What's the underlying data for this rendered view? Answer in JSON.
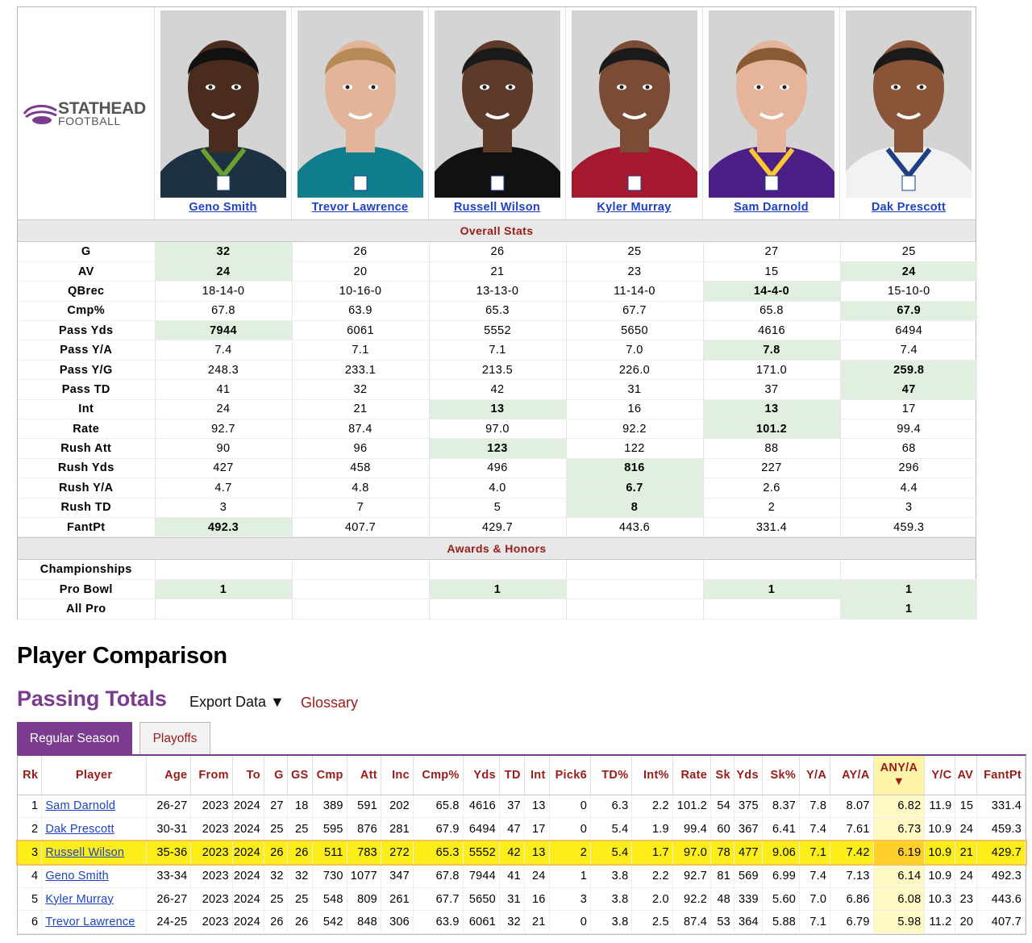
{
  "logo": {
    "line1": "STATHEAD",
    "line2": "FOOTBALL"
  },
  "players": [
    {
      "name": "Geno Smith",
      "skin": "#4a2c1f",
      "jersey": "#1e3142",
      "trim": "#6aa02e",
      "hair": "#111"
    },
    {
      "name": "Trevor Lawrence",
      "skin": "#e2b59a",
      "jersey": "#0f7d8c",
      "trim": "#0f7d8c",
      "hair": "#b78a55"
    },
    {
      "name": "Russell Wilson",
      "skin": "#5e3a28",
      "jersey": "#111111",
      "trim": "#111111",
      "hair": "#1a1a1a"
    },
    {
      "name": "Kyler Murray",
      "skin": "#7a4b35",
      "jersey": "#a5192f",
      "trim": "#a5192f",
      "hair": "#1a1a1a"
    },
    {
      "name": "Sam Darnold",
      "skin": "#e6b49a",
      "jersey": "#4b1f85",
      "trim": "#ffc62f",
      "hair": "#8a5a35"
    },
    {
      "name": "Dak Prescott",
      "skin": "#8a5438",
      "jersey": "#f2f2f2",
      "trim": "#1d3f84",
      "hair": "#1a1a1a"
    }
  ],
  "overall_title": "Overall Stats",
  "overall": [
    {
      "label": "G",
      "vals": [
        "32",
        "26",
        "26",
        "25",
        "27",
        "25"
      ],
      "hl": [
        0
      ]
    },
    {
      "label": "AV",
      "vals": [
        "24",
        "20",
        "21",
        "23",
        "15",
        "24"
      ],
      "hl": [
        0,
        5
      ]
    },
    {
      "label": "QBrec",
      "vals": [
        "18-14-0",
        "10-16-0",
        "13-13-0",
        "11-14-0",
        "14-4-0",
        "15-10-0"
      ],
      "hl": [
        4
      ]
    },
    {
      "label": "Cmp%",
      "vals": [
        "67.8",
        "63.9",
        "65.3",
        "67.7",
        "65.8",
        "67.9"
      ],
      "hl": [
        5
      ]
    },
    {
      "label": "Pass Yds",
      "vals": [
        "7944",
        "6061",
        "5552",
        "5650",
        "4616",
        "6494"
      ],
      "hl": [
        0
      ]
    },
    {
      "label": "Pass Y/A",
      "vals": [
        "7.4",
        "7.1",
        "7.1",
        "7.0",
        "7.8",
        "7.4"
      ],
      "hl": [
        4
      ]
    },
    {
      "label": "Pass Y/G",
      "vals": [
        "248.3",
        "233.1",
        "213.5",
        "226.0",
        "171.0",
        "259.8"
      ],
      "hl": [
        5
      ]
    },
    {
      "label": "Pass TD",
      "vals": [
        "41",
        "32",
        "42",
        "31",
        "37",
        "47"
      ],
      "hl": [
        5
      ]
    },
    {
      "label": "Int",
      "vals": [
        "24",
        "21",
        "13",
        "16",
        "13",
        "17"
      ],
      "hl": [
        2,
        4
      ]
    },
    {
      "label": "Rate",
      "vals": [
        "92.7",
        "87.4",
        "97.0",
        "92.2",
        "101.2",
        "99.4"
      ],
      "hl": [
        4
      ]
    },
    {
      "label": "Rush Att",
      "vals": [
        "90",
        "96",
        "123",
        "122",
        "88",
        "68"
      ],
      "hl": [
        2
      ]
    },
    {
      "label": "Rush Yds",
      "vals": [
        "427",
        "458",
        "496",
        "816",
        "227",
        "296"
      ],
      "hl": [
        3
      ]
    },
    {
      "label": "Rush Y/A",
      "vals": [
        "4.7",
        "4.8",
        "4.0",
        "6.7",
        "2.6",
        "4.4"
      ],
      "hl": [
        3
      ]
    },
    {
      "label": "Rush TD",
      "vals": [
        "3",
        "7",
        "5",
        "8",
        "2",
        "3"
      ],
      "hl": [
        3
      ]
    },
    {
      "label": "FantPt",
      "vals": [
        "492.3",
        "407.7",
        "429.7",
        "443.6",
        "331.4",
        "459.3"
      ],
      "hl": [
        0
      ]
    }
  ],
  "awards_title": "Awards & Honors",
  "awards": [
    {
      "label": "Championships",
      "vals": [
        "",
        "",
        "",
        "",
        "",
        ""
      ],
      "hl": []
    },
    {
      "label": "Pro Bowl",
      "vals": [
        "1",
        "",
        "1",
        "",
        "1",
        "1"
      ],
      "hl": [
        0,
        2,
        4,
        5
      ]
    },
    {
      "label": "All Pro",
      "vals": [
        "",
        "",
        "",
        "",
        "",
        "1"
      ],
      "hl": [
        5
      ]
    }
  ],
  "section_title": "Player Comparison",
  "table_title": "Passing Totals",
  "export_label": "Export Data ▼",
  "glossary_label": "Glossary",
  "tabs": {
    "regular": "Regular Season",
    "playoffs": "Playoffs"
  },
  "columns": [
    "Rk",
    "Player",
    "Age",
    "From",
    "To",
    "G",
    "GS",
    "Cmp",
    "Att",
    "Inc",
    "Cmp%",
    "Yds",
    "TD",
    "Int",
    "Pick6",
    "TD%",
    "Int%",
    "Rate",
    "Sk",
    "Yds",
    "Sk%",
    "Y/A",
    "AY/A",
    "ANY/A",
    "Y/C",
    "AV",
    "FantPt"
  ],
  "sorted_column": "ANY/A",
  "sort_arrow": "▼",
  "highlight_player": "Russell Wilson",
  "rows": [
    [
      "1",
      "Sam Darnold",
      "26-27",
      "2023",
      "2024",
      "27",
      "18",
      "389",
      "591",
      "202",
      "65.8",
      "4616",
      "37",
      "13",
      "0",
      "6.3",
      "2.2",
      "101.2",
      "54",
      "375",
      "8.37",
      "7.8",
      "8.07",
      "6.82",
      "11.9",
      "15",
      "331.4"
    ],
    [
      "2",
      "Dak Prescott",
      "30-31",
      "2023",
      "2024",
      "25",
      "25",
      "595",
      "876",
      "281",
      "67.9",
      "6494",
      "47",
      "17",
      "0",
      "5.4",
      "1.9",
      "99.4",
      "60",
      "367",
      "6.41",
      "7.4",
      "7.61",
      "6.73",
      "10.9",
      "24",
      "459.3"
    ],
    [
      "3",
      "Russell Wilson",
      "35-36",
      "2023",
      "2024",
      "26",
      "26",
      "511",
      "783",
      "272",
      "65.3",
      "5552",
      "42",
      "13",
      "2",
      "5.4",
      "1.7",
      "97.0",
      "78",
      "477",
      "9.06",
      "7.1",
      "7.42",
      "6.19",
      "10.9",
      "21",
      "429.7"
    ],
    [
      "4",
      "Geno Smith",
      "33-34",
      "2023",
      "2024",
      "32",
      "32",
      "730",
      "1077",
      "347",
      "67.8",
      "7944",
      "41",
      "24",
      "1",
      "3.8",
      "2.2",
      "92.7",
      "81",
      "569",
      "6.99",
      "7.4",
      "7.13",
      "6.14",
      "10.9",
      "24",
      "492.3"
    ],
    [
      "5",
      "Kyler Murray",
      "26-27",
      "2023",
      "2024",
      "25",
      "25",
      "548",
      "809",
      "261",
      "67.7",
      "5650",
      "31",
      "16",
      "3",
      "3.8",
      "2.0",
      "92.2",
      "48",
      "339",
      "5.60",
      "7.0",
      "6.86",
      "6.08",
      "10.3",
      "23",
      "443.6"
    ],
    [
      "6",
      "Trevor Lawrence",
      "24-25",
      "2023",
      "2024",
      "26",
      "26",
      "542",
      "848",
      "306",
      "63.9",
      "6061",
      "32",
      "21",
      "0",
      "3.8",
      "2.5",
      "87.4",
      "53",
      "364",
      "5.88",
      "7.1",
      "6.79",
      "5.98",
      "11.2",
      "20",
      "407.7"
    ]
  ]
}
